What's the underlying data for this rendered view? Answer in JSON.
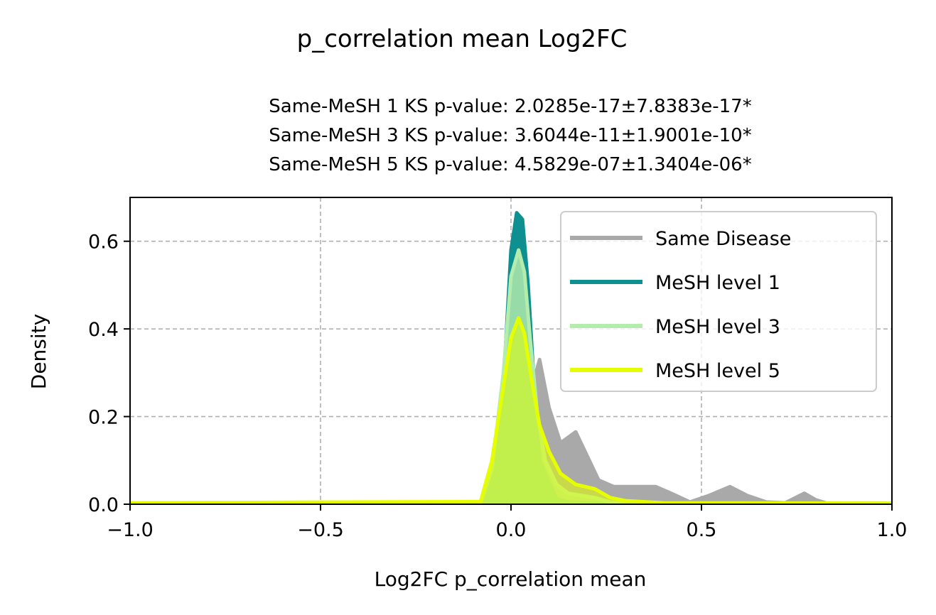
{
  "chart_data": {
    "type": "area",
    "title": "p_correlation mean Log2FC",
    "subtitle_lines": [
      "Same-MeSH 1 KS p-value: 2.0285e-17±7.8383e-17*",
      "Same-MeSH 3 KS p-value: 3.6044e-11±1.9001e-10*",
      "Same-MeSH 5 KS p-value: 4.5829e-07±1.3404e-06*"
    ],
    "xlabel": "Log2FC p_correlation mean",
    "ylabel": "Density",
    "xlim": [
      -1.0,
      1.0
    ],
    "ylim": [
      0.0,
      0.7
    ],
    "xticks": [
      -1.0,
      -0.5,
      0.0,
      0.5,
      1.0
    ],
    "xtick_labels": [
      "−1.0",
      "−0.5",
      "0.0",
      "0.5",
      "1.0"
    ],
    "yticks": [
      0.0,
      0.2,
      0.4,
      0.6
    ],
    "ytick_labels": [
      "0.0",
      "0.2",
      "0.4",
      "0.6"
    ],
    "grid": true,
    "legend_position": "upper-right",
    "series": [
      {
        "name": "Same Disease",
        "color": "#a9a9a9",
        "fill_opacity": 1.0,
        "points": [
          [
            -1.0,
            0.002
          ],
          [
            -0.05,
            0.002
          ],
          [
            -0.03,
            0.01
          ],
          [
            0.0,
            0.07
          ],
          [
            0.03,
            0.17
          ],
          [
            0.05,
            0.25
          ],
          [
            0.075,
            0.33
          ],
          [
            0.1,
            0.22
          ],
          [
            0.13,
            0.14
          ],
          [
            0.17,
            0.165
          ],
          [
            0.2,
            0.11
          ],
          [
            0.23,
            0.055
          ],
          [
            0.27,
            0.04
          ],
          [
            0.3,
            0.04
          ],
          [
            0.38,
            0.04
          ],
          [
            0.42,
            0.025
          ],
          [
            0.47,
            0.005
          ],
          [
            0.52,
            0.02
          ],
          [
            0.575,
            0.04
          ],
          [
            0.62,
            0.02
          ],
          [
            0.67,
            0.005
          ],
          [
            0.72,
            0.003
          ],
          [
            0.77,
            0.025
          ],
          [
            0.8,
            0.01
          ],
          [
            0.83,
            0.002
          ],
          [
            1.0,
            0.002
          ]
        ]
      },
      {
        "name": "MeSH level 1",
        "color": "#0e9090",
        "fill_opacity": 1.0,
        "points": [
          [
            -1.0,
            0.0
          ],
          [
            -0.08,
            0.002
          ],
          [
            -0.05,
            0.07
          ],
          [
            -0.02,
            0.27
          ],
          [
            0.0,
            0.58
          ],
          [
            0.015,
            0.665
          ],
          [
            0.03,
            0.65
          ],
          [
            0.045,
            0.5
          ],
          [
            0.06,
            0.28
          ],
          [
            0.075,
            0.1
          ],
          [
            0.09,
            0.07
          ],
          [
            0.12,
            0.012
          ],
          [
            0.15,
            0.005
          ],
          [
            0.25,
            0.001
          ],
          [
            1.0,
            0.0
          ]
        ]
      },
      {
        "name": "MeSH level 3",
        "color": "#b4ecad",
        "fill_opacity": 0.82,
        "points": [
          [
            -1.0,
            0.0
          ],
          [
            -0.08,
            0.002
          ],
          [
            -0.05,
            0.08
          ],
          [
            -0.02,
            0.3
          ],
          [
            0.0,
            0.52
          ],
          [
            0.02,
            0.58
          ],
          [
            0.035,
            0.53
          ],
          [
            0.05,
            0.38
          ],
          [
            0.07,
            0.2
          ],
          [
            0.09,
            0.1
          ],
          [
            0.12,
            0.045
          ],
          [
            0.15,
            0.025
          ],
          [
            0.22,
            0.015
          ],
          [
            0.26,
            0.005
          ],
          [
            0.32,
            0.001
          ],
          [
            1.0,
            0.0
          ]
        ]
      },
      {
        "name": "MeSH level 5",
        "color": "#e6ff00",
        "fill_opacity": 0.55,
        "points": [
          [
            -1.0,
            0.003
          ],
          [
            -0.08,
            0.006
          ],
          [
            -0.05,
            0.1
          ],
          [
            -0.02,
            0.27
          ],
          [
            0.0,
            0.38
          ],
          [
            0.02,
            0.425
          ],
          [
            0.035,
            0.39
          ],
          [
            0.055,
            0.28
          ],
          [
            0.075,
            0.18
          ],
          [
            0.1,
            0.12
          ],
          [
            0.13,
            0.07
          ],
          [
            0.17,
            0.045
          ],
          [
            0.22,
            0.035
          ],
          [
            0.26,
            0.015
          ],
          [
            0.3,
            0.008
          ],
          [
            0.4,
            0.003
          ],
          [
            1.0,
            0.002
          ]
        ]
      }
    ]
  }
}
